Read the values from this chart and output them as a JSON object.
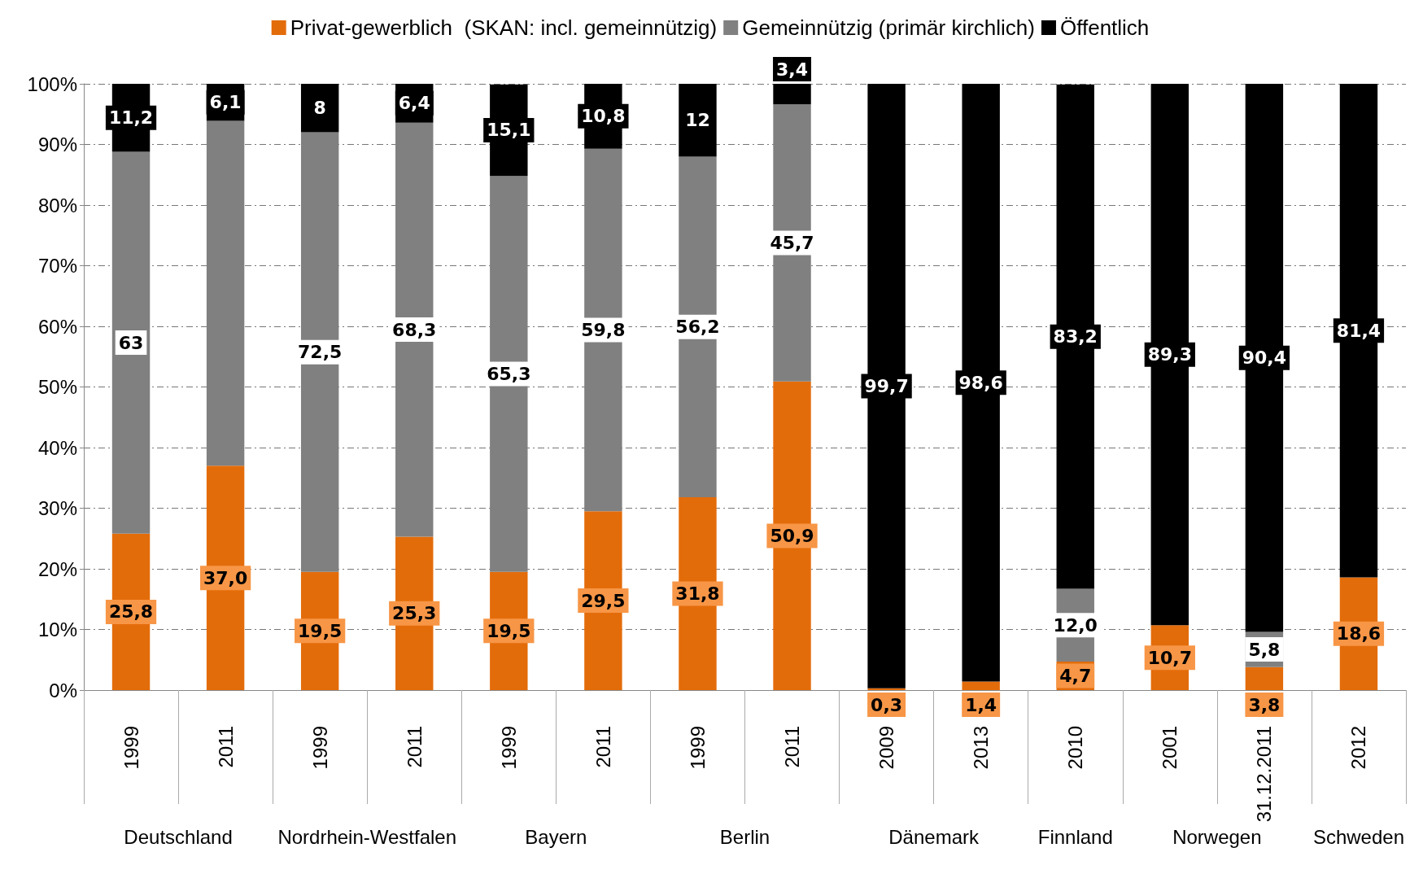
{
  "chart_data": {
    "type": "bar",
    "stacked": true,
    "categories": [
      "1999",
      "2011",
      "1999",
      "2011",
      "1999",
      "2011",
      "1999",
      "2011",
      "2009",
      "2013",
      "2010",
      "2001",
      "31.12.2011",
      "2012"
    ],
    "series": [
      {
        "name": "Privat-gewerblich  (SKAN: incl. gemeinnützig)",
        "color": "#e36c0a",
        "values": [
          25.8,
          37.0,
          19.5,
          25.3,
          19.5,
          29.5,
          31.8,
          50.9,
          0.3,
          1.4,
          4.7,
          10.7,
          3.8,
          18.6
        ],
        "value_labels": [
          "25,8",
          "37,0",
          "19,5",
          "25,3",
          "19,5",
          "29,5",
          "31,8",
          "50,9",
          "0,3",
          "1,4",
          "4,7",
          "10,7",
          "3,8",
          "18,6"
        ]
      },
      {
        "name": "Gemeinnützig (primär kirchlich)",
        "color": "#808080",
        "values": [
          63,
          56.9,
          72.5,
          68.3,
          65.3,
          59.8,
          56.2,
          45.7,
          0,
          0,
          12.0,
          0,
          5.8,
          0
        ],
        "value_labels": [
          "63",
          null,
          "72,5",
          "68,3",
          "65,3",
          "59,8",
          "56,2",
          "45,7",
          null,
          null,
          "12,0",
          null,
          "5,8",
          null
        ]
      },
      {
        "name": "Öffentlich",
        "color": "#000000",
        "values": [
          11.2,
          6.1,
          8,
          6.4,
          15.1,
          10.8,
          12,
          3.4,
          99.7,
          98.6,
          83.2,
          89.3,
          90.4,
          81.4
        ],
        "value_labels": [
          "11,2",
          "6,1",
          "8",
          "6,4",
          "15,1",
          "10,8",
          "12",
          "3,4",
          "99,7",
          "98,6",
          "83,2",
          "89,3",
          "90,4",
          "81,4"
        ]
      }
    ],
    "annotations": [
      "Deutschland",
      "Nordrhein-Westfalen",
      "Bayern",
      "Berlin",
      "Dänemark",
      "Finnland",
      "Norwegen",
      "Schweden"
    ],
    "ylim": [
      0,
      100
    ],
    "yticks": [
      {
        "value": 0,
        "label": "0%"
      },
      {
        "value": 10,
        "label": "10%"
      },
      {
        "value": 20,
        "label": "20%"
      },
      {
        "value": 30,
        "label": "30%"
      },
      {
        "value": 40,
        "label": "40%"
      },
      {
        "value": 50,
        "label": "50%"
      },
      {
        "value": 60,
        "label": "60%"
      },
      {
        "value": 70,
        "label": "70%"
      },
      {
        "value": 80,
        "label": "80%"
      },
      {
        "value": 90,
        "label": "90%"
      },
      {
        "value": 100,
        "label": "100%"
      }
    ],
    "grid": "y",
    "legend": "top"
  }
}
